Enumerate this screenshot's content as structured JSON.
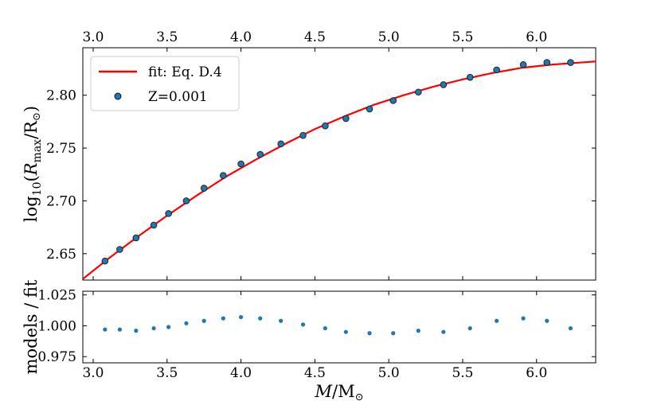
{
  "chart_data": [
    {
      "type": "line+scatter",
      "ylabel": "log10(R_max/R⊙)",
      "ylabel_parts": {
        "pre": "log",
        "sub": "10",
        "open": "(",
        "R": "R",
        "max": "max",
        "sun": "/R",
        "close": ")"
      },
      "xlim": [
        2.93,
        6.4
      ],
      "ylim": [
        2.625,
        2.845
      ],
      "x_ticks": [
        3.0,
        3.5,
        4.0,
        4.5,
        5.0,
        5.5,
        6.0
      ],
      "x_tick_labels": [
        "3.0",
        "3.5",
        "4.0",
        "4.5",
        "5.0",
        "5.5",
        "6.0"
      ],
      "y_ticks": [
        2.65,
        2.7,
        2.75,
        2.8
      ],
      "y_tick_labels": [
        "2.65",
        "2.70",
        "2.75",
        "2.80"
      ],
      "legend": {
        "location": "upper-left",
        "entries": [
          "fit: Eq. D.4",
          "Z=0.001"
        ]
      },
      "series": [
        {
          "name": "fit: Eq. D.4",
          "kind": "line",
          "color": "#ff0000",
          "x": [
            2.93,
            3.1,
            3.3,
            3.5,
            3.7,
            3.9,
            4.1,
            4.3,
            4.5,
            4.7,
            4.9,
            5.1,
            5.3,
            5.5,
            5.7,
            5.9,
            6.1,
            6.3,
            6.4
          ],
          "y": [
            2.626,
            2.645,
            2.666,
            2.686,
            2.705,
            2.723,
            2.739,
            2.754,
            2.768,
            2.78,
            2.791,
            2.8,
            2.808,
            2.815,
            2.821,
            2.826,
            2.829,
            2.831,
            2.832
          ]
        },
        {
          "name": "Z=0.001",
          "kind": "scatter",
          "color": "#1f77b4",
          "x": [
            3.08,
            3.18,
            3.29,
            3.41,
            3.51,
            3.63,
            3.75,
            3.88,
            4.0,
            4.13,
            4.27,
            4.42,
            4.57,
            4.71,
            4.87,
            5.03,
            5.2,
            5.37,
            5.55,
            5.73,
            5.91,
            6.07,
            6.23
          ],
          "y": [
            2.643,
            2.654,
            2.665,
            2.677,
            2.688,
            2.7,
            2.712,
            2.724,
            2.735,
            2.744,
            2.754,
            2.762,
            2.771,
            2.778,
            2.787,
            2.795,
            2.803,
            2.81,
            2.817,
            2.824,
            2.829,
            2.831,
            2.831
          ]
        }
      ]
    },
    {
      "type": "scatter",
      "ylabel": "models / fit",
      "xlabel": "M/M⊙",
      "xlabel_parts": {
        "M": "M",
        "slash": "/M"
      },
      "xlim": [
        2.93,
        6.4
      ],
      "ylim": [
        0.97,
        1.028
      ],
      "x_ticks": [
        3.0,
        3.5,
        4.0,
        4.5,
        5.0,
        5.5,
        6.0
      ],
      "x_tick_labels": [
        "3.0",
        "3.5",
        "4.0",
        "4.5",
        "5.0",
        "5.5",
        "6.0"
      ],
      "y_ticks": [
        0.975,
        1.0,
        1.025
      ],
      "y_tick_labels": [
        "0.975",
        "1.000",
        "1.025"
      ],
      "series": [
        {
          "name": "models / fit",
          "color": "#1f77b4",
          "x": [
            3.08,
            3.18,
            3.29,
            3.41,
            3.51,
            3.63,
            3.75,
            3.88,
            4.0,
            4.13,
            4.27,
            4.42,
            4.57,
            4.71,
            4.87,
            5.03,
            5.2,
            5.37,
            5.55,
            5.73,
            5.91,
            6.07,
            6.23
          ],
          "y": [
            0.997,
            0.997,
            0.996,
            0.998,
            0.999,
            1.002,
            1.004,
            1.006,
            1.007,
            1.006,
            1.004,
            1.001,
            0.998,
            0.995,
            0.994,
            0.994,
            0.996,
            0.995,
            0.998,
            1.004,
            1.006,
            1.004,
            0.998
          ]
        }
      ]
    }
  ]
}
